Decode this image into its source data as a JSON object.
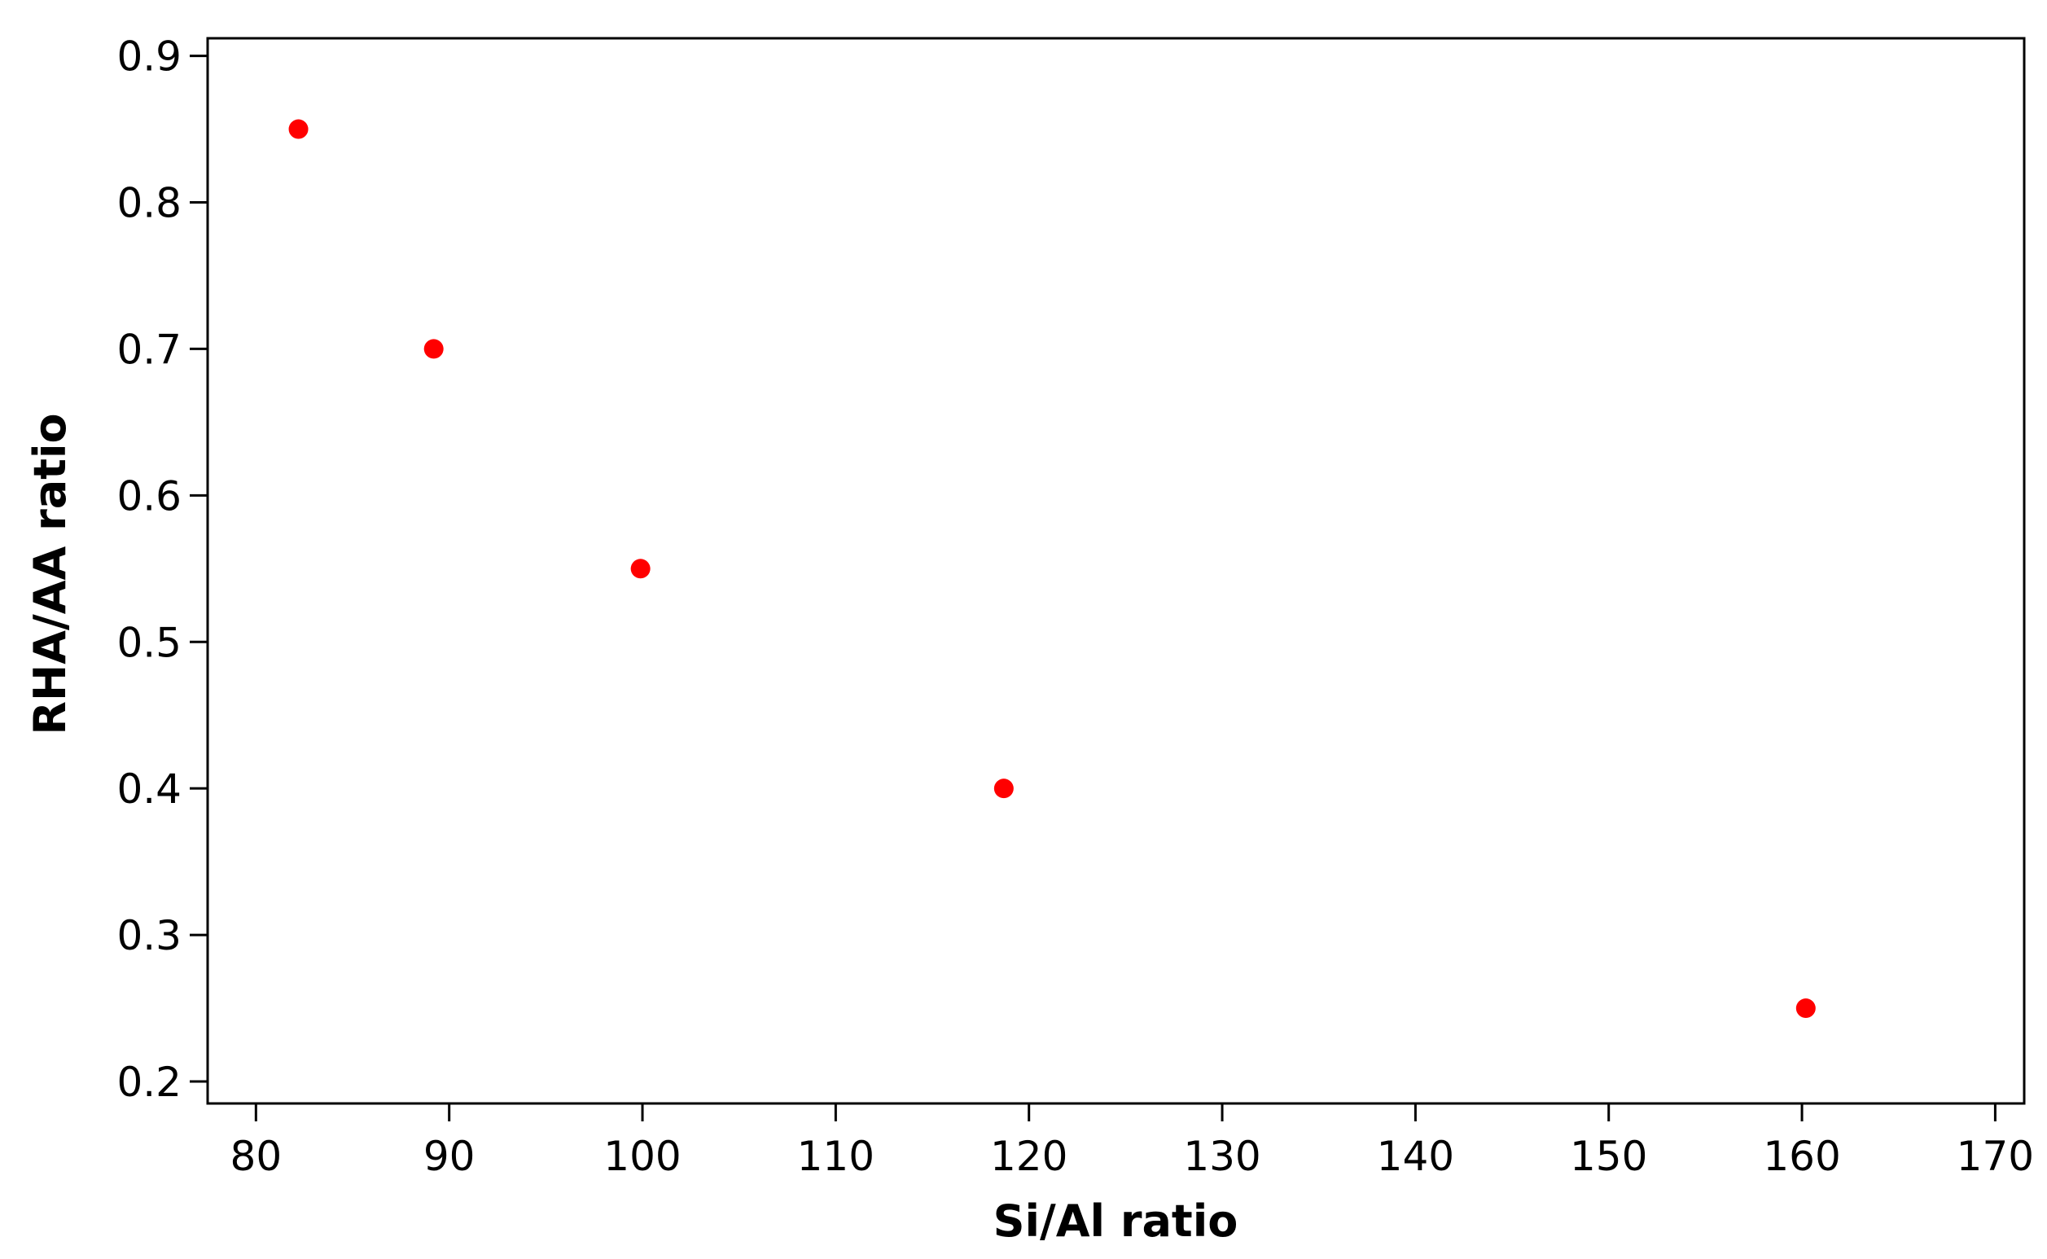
{
  "chart_data": {
    "type": "scatter",
    "title": "",
    "xlabel": "Si/Al ratio",
    "ylabel": "RHA/AA ratio",
    "xlim": [
      77.5,
      171.5
    ],
    "ylim": [
      0.185,
      0.912
    ],
    "x_ticks": [
      80,
      90,
      100,
      110,
      120,
      130,
      140,
      150,
      160,
      170
    ],
    "y_ticks": [
      0.2,
      0.3,
      0.4,
      0.5,
      0.6,
      0.7,
      0.8,
      0.9
    ],
    "x_tick_labels": [
      "80",
      "90",
      "100",
      "110",
      "120",
      "130",
      "140",
      "150",
      "160",
      "170"
    ],
    "y_tick_labels": [
      "0.2",
      "0.3",
      "0.4",
      "0.5",
      "0.6",
      "0.7",
      "0.8",
      "0.9"
    ],
    "grid": false,
    "legend": "none",
    "series": [
      {
        "color": "#ff0000",
        "points": [
          {
            "x": 82.2,
            "y": 0.85
          },
          {
            "x": 89.2,
            "y": 0.7
          },
          {
            "x": 99.9,
            "y": 0.55
          },
          {
            "x": 118.7,
            "y": 0.4
          },
          {
            "x": 160.2,
            "y": 0.25
          }
        ]
      }
    ]
  }
}
